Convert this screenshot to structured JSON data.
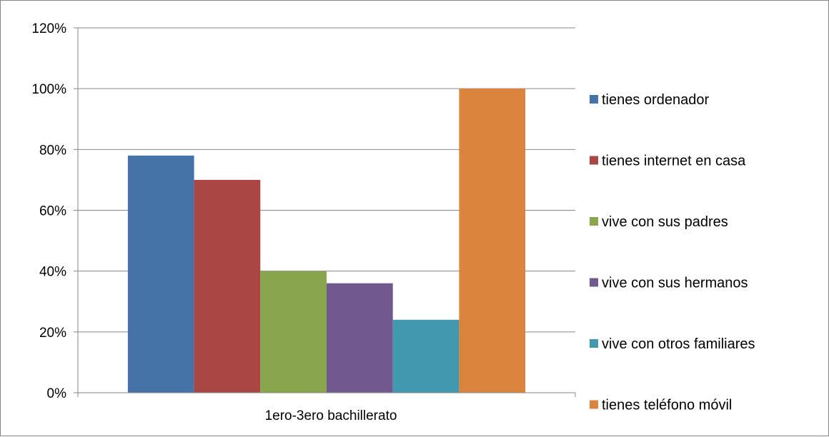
{
  "chart_data": {
    "type": "bar",
    "categories": [
      "1ero-3ero bachillerato"
    ],
    "series": [
      {
        "name": "tienes ordenador",
        "values": [
          78
        ],
        "color": "#4572A7"
      },
      {
        "name": "tienes internet en casa",
        "values": [
          70
        ],
        "color": "#AA4643"
      },
      {
        "name": "vive con sus padres",
        "values": [
          40
        ],
        "color": "#89A54E"
      },
      {
        "name": "vive con sus hermanos",
        "values": [
          36
        ],
        "color": "#71588F"
      },
      {
        "name": "vive con otros familiares",
        "values": [
          24
        ],
        "color": "#4198AF"
      },
      {
        "name": "tienes teléfono móvil",
        "values": [
          100
        ],
        "color": "#DB843D"
      }
    ],
    "yticks": [
      "0%",
      "20%",
      "40%",
      "60%",
      "80%",
      "100%",
      "120%"
    ],
    "ylim": [
      0,
      120
    ],
    "grid": true,
    "legend_position": "right"
  }
}
